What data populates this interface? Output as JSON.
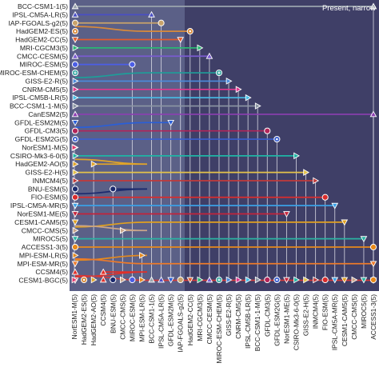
{
  "chart_data": {
    "type": "scatter",
    "annotation": "Present, narrow",
    "models": [
      {
        "name": "BCC-CSM1-1(5)",
        "color": "#9aa4ad",
        "marker": "tri-up",
        "merge": "ACCESS1-3(5)",
        "curve": false
      },
      {
        "name": "IPSL-CM5A-LR(5)",
        "color": "#4a4fc4",
        "marker": "tri-up",
        "merge": "BCC-CSM1-1(5)",
        "curve": false
      },
      {
        "name": "IAP-FGOALS-g2(5)",
        "color": "#c9a36a",
        "marker": "circle",
        "merge": "IPSL-CM5A-LR(5)",
        "curve": false
      },
      {
        "name": "HadGEM2-ES(5)",
        "color": "#d98a3a",
        "marker": "circle-dot",
        "merge": "HadGEM2-CC(5)",
        "curve": true
      },
      {
        "name": "HadGEM2-CC(5)",
        "color": "#e15b2d",
        "marker": "tri-down",
        "merge": "IAP-FGOALS-g2(5)",
        "curve": false
      },
      {
        "name": "MRI-CGCM3(5)",
        "color": "#2bb673",
        "marker": "tri-right",
        "merge": "MRI-CGCM3(5)",
        "curve": false
      },
      {
        "name": "CMCC-CESM(5)",
        "color": "#7a5bd0",
        "marker": "tri-up",
        "merge": "CMCC-CESM(5)",
        "curve": false
      },
      {
        "name": "MIROC-ESM(5)",
        "color": "#4c5ee6",
        "marker": "circle",
        "merge": "MIROC-ESM(5)",
        "curve": false
      },
      {
        "name": "MIROC-ESM-CHEM(5)",
        "color": "#1e9e99",
        "marker": "circle-plus",
        "merge": "MIROC-ESM-CHEM(5)",
        "curve": true
      },
      {
        "name": "GISS-E2-R(5)",
        "color": "#4b8bdc",
        "marker": "tri-right",
        "merge": "GISS-E2-R(5)",
        "curve": false
      },
      {
        "name": "CNRM-CM5(5)",
        "color": "#e0388f",
        "marker": "tri-right",
        "merge": "CNRM-CM5(5)",
        "curve": false
      },
      {
        "name": "IPSL-CM5B-LR(5)",
        "color": "#46bde6",
        "marker": "tri-right",
        "merge": "IPSL-CM5B-LR(5)",
        "curve": false
      },
      {
        "name": "BCC-CSM1-1-M(5)",
        "color": "#8c96a4",
        "marker": "tri-right",
        "merge": "BCC-CSM1-1-M(5)",
        "curve": false
      },
      {
        "name": "CanESM2(5)",
        "color": "#8d3fb2",
        "marker": "tri-up",
        "merge": "CanESM2(5)",
        "curve": false
      },
      {
        "name": "GFDL-ESM2M(5)",
        "color": "#2a5fd8",
        "marker": "tri-down",
        "merge": "GFDL-ESM2M(5)",
        "curve": true
      },
      {
        "name": "GFDL-CM3(5)",
        "color": "#b2255a",
        "marker": "circle",
        "merge": "GFDL-CM3(5)",
        "curve": false
      },
      {
        "name": "GFDL-ESM2G(5)",
        "color": "#3a5fd0",
        "marker": "circle-dot",
        "merge": "GFDL-ESM2G(5)",
        "curve": false
      },
      {
        "name": "NorESM1-M(5)",
        "color": "#e23a6e",
        "marker": "tri-right",
        "merge": "NorESM1-M(5)",
        "curve": false
      },
      {
        "name": "CSIRO-Mk3-6-0(5)",
        "color": "#1fb5a5",
        "marker": "tri-right",
        "merge": "CSIRO-Mk3-6-0(5)",
        "curve": false
      },
      {
        "name": "HadGEM2-AO(5)",
        "color": "#e0a42a",
        "marker": "tri-right",
        "merge": "HadGEM2-AO(5)",
        "curve": true
      },
      {
        "name": "GISS-E2-H(5)",
        "color": "#e3c24a",
        "marker": "tri-right",
        "merge": "GISS-E2-H(5)",
        "curve": false
      },
      {
        "name": "INMCM4(5)",
        "color": "#c03a3a",
        "marker": "tri-right",
        "merge": "INMCM4(5)",
        "curve": false
      },
      {
        "name": "BNU-ESM(5)",
        "color": "#1c2a6e",
        "marker": "circle",
        "merge": "BNU-ESM(5)",
        "curve": true
      },
      {
        "name": "FIO-ESM(5)",
        "color": "#d92c2c",
        "marker": "circle",
        "merge": "FIO-ESM(5)",
        "curve": false
      },
      {
        "name": "IPSL-CM5A-MR(5)",
        "color": "#3aa0e6",
        "marker": "tri-down",
        "merge": "IPSL-CM5A-MR(5)",
        "curve": false
      },
      {
        "name": "NorESM1-ME(5)",
        "color": "#c4233a",
        "marker": "tri-down",
        "merge": "NorESM1-ME(5)",
        "curve": false
      },
      {
        "name": "CESM1-CAM5(5)",
        "color": "#e0a020",
        "marker": "tri-down",
        "merge": "CESM1-CAM5(5)",
        "curve": true
      },
      {
        "name": "CMCC-CMS(5)",
        "color": "#c9a58a",
        "marker": "tri-right",
        "merge": "CMCC-CMS(5)",
        "curve": true
      },
      {
        "name": "MIROC5(5)",
        "color": "#2ab2a2",
        "marker": "tri-down",
        "merge": "MIROC5(5)",
        "curve": false
      },
      {
        "name": "ACCESS1-3(5)",
        "color": "#e88a1a",
        "marker": "circle",
        "merge": "ACCESS1-3(5)",
        "curve": false
      },
      {
        "name": "MPI-ESM-LR(5)",
        "color": "#e48a1e",
        "marker": "tri-right",
        "merge": "MPI-ESM-LR(5)",
        "curve": true
      },
      {
        "name": "MPI-ESM-MR(5)",
        "color": "#ec7a2a",
        "marker": "tri-down",
        "merge": "MPI-ESM-MR(5)",
        "curve": true
      },
      {
        "name": "CCSM4(5)",
        "color": "#e0302a",
        "marker": "tri-up",
        "merge": "CCSM4(5)",
        "curve": true
      },
      {
        "name": "CESM1-BGC(5)",
        "color": "#d43a3a",
        "marker": "tri-down",
        "merge": "CESM1-BGC(5)",
        "curve": true
      }
    ],
    "y_labels": [
      "BCC-CSM1-1(5)",
      "IPSL-CM5A-LR(5)",
      "IAP-FGOALS-g2(5)",
      "HadGEM2-ES(5)",
      "HadGEM2-CC(5)",
      "MRI-CGCM3(5)",
      "CMCC-CESM(5)",
      "MIROC-ESM(5)",
      "MIROC-ESM-CHEM(5)",
      "GISS-E2-R(5)",
      "CNRM-CM5(5)",
      "IPSL-CM5B-LR(5)",
      "BCC-CSM1-1-M(5)",
      "CanESM2(5)",
      "GFDL-ESM2M(5)",
      "GFDL-CM3(5)",
      "GFDL-ESM2G(5)",
      "NorESM1-M(5)",
      "CSIRO-Mk3-6-0(5)",
      "HadGEM2-AO(5)",
      "GISS-E2-H(5)",
      "INMCM4(5)",
      "BNU-ESM(5)",
      "FIO-ESM(5)",
      "IPSL-CM5A-MR(5)",
      "NorESM1-ME(5)",
      "CESM1-CAM5(5)",
      "CMCC-CMS(5)",
      "MIROC5(5)",
      "ACCESS1-3(5)",
      "MPI-ESM-LR(5)",
      "MPI-ESM-MR(5)",
      "CCSM4(5)",
      "CESM1-BGC(5)"
    ],
    "x_labels": [
      "NorESM1-M(5)",
      "HadGEM2-ES(5)",
      "HadGEM2-AO(5)",
      "CCSM4(5)",
      "BNU-ESM(5)",
      "CMCC-CMS(5)",
      "MIROC-ESM(5)",
      "MPI-ESM-LR(5)",
      "BCC-CSM1-1(5)",
      "IPSL-CM5A-LR(5)",
      "GFDL-ESM2M(5)",
      "IAP-FGOALS-g2(5)",
      "HadGEM2-CC(5)",
      "MRI-CGCM3(5)",
      "CMCC-CESM(5)",
      "MIROC-ESM-CHEM(5)",
      "GISS-E2-R(5)",
      "CNRM-CM5(5)",
      "IPSL-CM5B-LR(5)",
      "BCC-CSM1-1-M(5)",
      "GFDL-CM3(5)",
      "GFDL-ESM2G(5)",
      "NorESM1-ME(5)",
      "CSIRO-Mk3-6-0(5)",
      "GISS-E2-H(5)",
      "INMCM4(5)",
      "FIO-ESM(5)",
      "IPSL-CM5A-MR(5)",
      "CESM1-CAM5(5)",
      "CMCC-CMS(5)",
      "MIROC5(5)",
      "ACCESS1-3(5)"
    ],
    "colors": {
      "panel_background": "#3f3f67",
      "left_band": "#5b6087",
      "connector": "#e8e8f0",
      "label_text": "#222222",
      "annotation_text": "#ffffff"
    }
  }
}
